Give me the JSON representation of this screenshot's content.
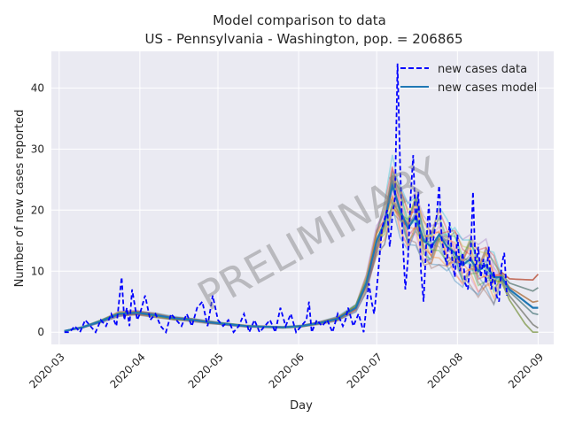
{
  "chart_data": {
    "type": "line",
    "title": "Model comparison to data",
    "subtitle": "US - Pennsylvania - Washington, pop. = 206865",
    "xlabel": "Day",
    "ylabel": "Number of new cases reported",
    "watermark": "PRELIMINARY",
    "x_range": [
      "2020-02-27",
      "2020-09-07"
    ],
    "ylim": [
      -2,
      46
    ],
    "grid": true,
    "legend_position": "top-right",
    "x_ticks": [
      "2020-03",
      "2020-04",
      "2020-05",
      "2020-06",
      "2020-07",
      "2020-08",
      "2020-09"
    ],
    "y_ticks": [
      0,
      10,
      20,
      30,
      40
    ],
    "colors": {
      "background": "#eaeaf2",
      "grid": "#ffffff",
      "data": "#0000ff",
      "model": "#1f77b4"
    },
    "series": [
      {
        "name": "new cases data",
        "style": "dashed",
        "color": "#0000ff",
        "x": [
          "2020-03-03",
          "2020-03-05",
          "2020-03-07",
          "2020-03-09",
          "2020-03-11",
          "2020-03-13",
          "2020-03-15",
          "2020-03-17",
          "2020-03-19",
          "2020-03-21",
          "2020-03-23",
          "2020-03-25",
          "2020-03-26",
          "2020-03-27",
          "2020-03-28",
          "2020-03-29",
          "2020-03-31",
          "2020-04-01",
          "2020-04-03",
          "2020-04-05",
          "2020-04-07",
          "2020-04-09",
          "2020-04-11",
          "2020-04-13",
          "2020-04-15",
          "2020-04-17",
          "2020-04-19",
          "2020-04-21",
          "2020-04-23",
          "2020-04-25",
          "2020-04-27",
          "2020-04-29",
          "2020-05-01",
          "2020-05-03",
          "2020-05-05",
          "2020-05-07",
          "2020-05-09",
          "2020-05-11",
          "2020-05-13",
          "2020-05-15",
          "2020-05-17",
          "2020-05-19",
          "2020-05-21",
          "2020-05-23",
          "2020-05-25",
          "2020-05-27",
          "2020-05-29",
          "2020-05-31",
          "2020-06-02",
          "2020-06-04",
          "2020-06-05",
          "2020-06-06",
          "2020-06-08",
          "2020-06-10",
          "2020-06-12",
          "2020-06-14",
          "2020-06-16",
          "2020-06-18",
          "2020-06-19",
          "2020-06-20",
          "2020-06-22",
          "2020-06-24",
          "2020-06-26",
          "2020-06-28",
          "2020-06-29",
          "2020-06-30",
          "2020-07-01",
          "2020-07-02",
          "2020-07-03",
          "2020-07-05",
          "2020-07-06",
          "2020-07-07",
          "2020-07-08",
          "2020-07-09",
          "2020-07-10",
          "2020-07-11",
          "2020-07-12",
          "2020-07-13",
          "2020-07-14",
          "2020-07-15",
          "2020-07-16",
          "2020-07-17",
          "2020-07-18",
          "2020-07-19",
          "2020-07-20",
          "2020-07-21",
          "2020-07-22",
          "2020-07-23",
          "2020-07-24",
          "2020-07-25",
          "2020-07-26",
          "2020-07-27",
          "2020-07-28",
          "2020-07-29",
          "2020-07-30",
          "2020-07-31",
          "2020-08-01",
          "2020-08-02",
          "2020-08-03",
          "2020-08-04",
          "2020-08-05",
          "2020-08-06",
          "2020-08-07",
          "2020-08-08",
          "2020-08-09",
          "2020-08-10",
          "2020-08-11",
          "2020-08-12",
          "2020-08-13",
          "2020-08-14",
          "2020-08-15",
          "2020-08-16",
          "2020-08-17",
          "2020-08-18",
          "2020-08-19",
          "2020-08-20"
        ],
        "values": [
          0,
          0,
          1,
          0,
          2,
          1,
          0,
          2,
          1,
          3,
          1,
          9,
          2,
          4,
          1,
          7,
          2,
          3,
          6,
          2,
          3,
          1,
          0,
          3,
          2,
          1,
          3,
          1,
          4,
          5,
          1,
          6,
          2,
          1,
          2,
          0,
          1,
          3,
          0,
          2,
          0,
          1,
          2,
          0,
          4,
          1,
          3,
          0,
          1,
          2,
          5,
          0,
          2,
          1,
          2,
          0,
          3,
          1,
          2,
          4,
          1,
          3,
          0,
          8,
          5,
          3,
          7,
          12,
          17,
          20,
          14,
          19,
          22,
          44,
          27,
          15,
          7,
          12,
          22,
          29,
          17,
          23,
          10,
          5,
          14,
          21,
          13,
          16,
          19,
          24,
          15,
          13,
          11,
          18,
          12,
          9,
          16,
          10,
          13,
          8,
          7,
          12,
          23,
          10,
          14,
          9,
          12,
          8,
          14,
          7,
          10,
          6,
          5,
          11,
          13,
          6
        ]
      },
      {
        "name": "new cases model",
        "style": "solid",
        "color": "#1f77b4",
        "x": [
          "2020-03-03",
          "2020-03-10",
          "2020-03-17",
          "2020-03-24",
          "2020-03-31",
          "2020-04-07",
          "2020-04-14",
          "2020-04-21",
          "2020-04-28",
          "2020-05-05",
          "2020-05-12",
          "2020-05-19",
          "2020-05-26",
          "2020-06-02",
          "2020-06-09",
          "2020-06-16",
          "2020-06-23",
          "2020-06-27",
          "2020-07-01",
          "2020-07-04",
          "2020-07-07",
          "2020-07-10",
          "2020-07-13",
          "2020-07-16",
          "2020-07-19",
          "2020-07-22",
          "2020-07-25",
          "2020-07-28",
          "2020-07-31",
          "2020-08-03",
          "2020-08-06",
          "2020-08-09",
          "2020-08-12",
          "2020-08-15",
          "2020-08-18",
          "2020-08-21",
          "2020-08-24",
          "2020-08-27",
          "2020-08-30",
          "2020-09-01"
        ],
        "values": [
          0.2,
          0.8,
          1.8,
          3.0,
          3.2,
          2.8,
          2.3,
          2.0,
          1.6,
          1.3,
          1.0,
          0.9,
          0.8,
          1.0,
          1.5,
          2.2,
          4.0,
          8.0,
          15,
          18,
          24,
          20,
          17,
          19,
          15,
          14,
          16,
          14,
          13,
          11,
          12,
          10,
          11,
          9,
          9,
          7,
          6,
          5,
          4,
          4
        ]
      }
    ],
    "ensemble_colors": [
      "#1f77b4",
      "#ff7f0e",
      "#2ca02c",
      "#d62728",
      "#9467bd",
      "#8c564b",
      "#e377c2",
      "#7f7f7f",
      "#bcbd22",
      "#17becf"
    ]
  }
}
